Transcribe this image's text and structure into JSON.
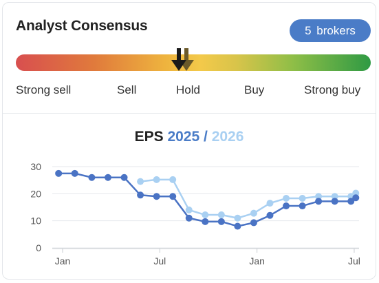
{
  "consensus": {
    "title": "Analyst Consensus",
    "brokers_badge": "5  brokers",
    "scale_labels": [
      "Strong sell",
      "Sell",
      "Hold",
      "Buy",
      "Strong buy"
    ],
    "current_rating_position": 0.46,
    "previous_rating_position": 0.48,
    "current_rating": "Hold",
    "colors": {
      "badge": "#4a7cc7",
      "gauge_start": "#d84f4f",
      "gauge_mid": "#f3c94a",
      "gauge_end": "#2f9a44",
      "current_arrow": "#1a1a1a",
      "previous_arrow": "#6b5a2a"
    }
  },
  "chart": {
    "title_label": "EPS",
    "title_year1": "2025",
    "title_sep": "/",
    "title_year2": "2026"
  },
  "chart_data": {
    "type": "line",
    "title": "EPS 2025 / 2026",
    "xlabel": "",
    "ylabel": "",
    "ylim": [
      0,
      30
    ],
    "yticks": [
      0,
      10,
      20,
      30
    ],
    "xticks": [
      {
        "label": "Jan",
        "month": 0
      },
      {
        "label": "Jul",
        "month": 6
      },
      {
        "label": "Jan",
        "month": 12
      },
      {
        "label": "Jul",
        "month": 18
      }
    ],
    "xlim": [
      -0.3,
      18.3
    ],
    "grid": true,
    "series": [
      {
        "name": "2025",
        "color": "#4a73c4",
        "points": [
          [
            -0.25,
            27.5
          ],
          [
            0.75,
            27.5
          ],
          [
            1.8,
            26
          ],
          [
            2.8,
            26
          ],
          [
            3.8,
            26
          ],
          [
            4.8,
            19.5
          ],
          [
            5.8,
            19
          ],
          [
            6.8,
            19
          ],
          [
            7.8,
            11
          ],
          [
            8.8,
            9.7
          ],
          [
            9.8,
            9.7
          ],
          [
            10.8,
            8
          ],
          [
            11.8,
            9.3
          ],
          [
            12.8,
            12
          ],
          [
            13.8,
            15.5
          ],
          [
            14.8,
            15.5
          ],
          [
            15.8,
            17.2
          ],
          [
            16.8,
            17.2
          ],
          [
            17.8,
            17.2
          ],
          [
            18.1,
            18.5
          ]
        ]
      },
      {
        "name": "2026",
        "color": "#a9d0f2",
        "points": [
          [
            4.8,
            24.5
          ],
          [
            5.8,
            25.2
          ],
          [
            6.8,
            25.2
          ],
          [
            7.8,
            14
          ],
          [
            8.8,
            12.2
          ],
          [
            9.8,
            12.2
          ],
          [
            10.8,
            11
          ],
          [
            11.8,
            12.8
          ],
          [
            12.8,
            16.5
          ],
          [
            13.8,
            18.3
          ],
          [
            14.8,
            18.3
          ],
          [
            15.8,
            19
          ],
          [
            16.8,
            19
          ],
          [
            17.8,
            19
          ],
          [
            18.1,
            20.2
          ]
        ]
      }
    ]
  }
}
